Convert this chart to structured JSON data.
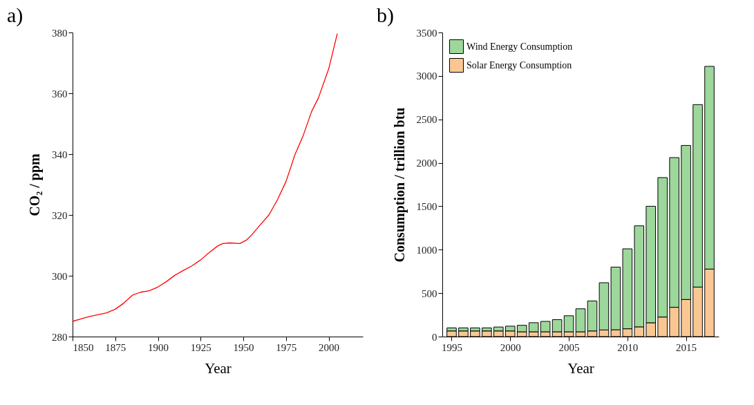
{
  "chart_data": [
    {
      "type": "line",
      "title": "a)",
      "xlabel": "Year",
      "ylabel": "CO₂ / ppm",
      "xlim": [
        1850,
        2020
      ],
      "xticks": [
        1850,
        1875,
        1900,
        1925,
        1950,
        1975,
        2000
      ],
      "ylim": [
        280,
        380
      ],
      "yticks": [
        280,
        300,
        320,
        340,
        360,
        380
      ],
      "grid": false,
      "legend": false,
      "x": [
        1850,
        1855,
        1860,
        1865,
        1870,
        1875,
        1880,
        1885,
        1890,
        1895,
        1900,
        1905,
        1910,
        1915,
        1920,
        1925,
        1930,
        1935,
        1938,
        1942,
        1948,
        1952,
        1955,
        1960,
        1965,
        1970,
        1975,
        1978,
        1980,
        1985,
        1990,
        1994,
        2000,
        2005
      ],
      "series": [
        {
          "color": "#ff0000",
          "values": [
            285,
            285.8,
            286.6,
            287.2,
            287.8,
            289,
            291,
            293.6,
            294.6,
            295.1,
            296.3,
            298.1,
            300.2,
            301.8,
            303.3,
            305.2,
            307.6,
            309.8,
            310.6,
            310.8,
            310.6,
            311.8,
            313.5,
            316.8,
            320,
            325,
            331,
            336,
            339.5,
            346,
            354,
            358.5,
            368,
            379.5
          ]
        }
      ]
    },
    {
      "type": "bar",
      "title": "b)",
      "xlabel": "Year",
      "ylabel": "Consumption / trillion btu",
      "stacked": true,
      "xlim": [
        1994.5,
        2017.5
      ],
      "xticks": [
        1995,
        2000,
        2005,
        2010,
        2015
      ],
      "ylim": [
        0,
        3500
      ],
      "yticks": [
        0,
        500,
        1000,
        1500,
        2000,
        2500,
        3000,
        3500
      ],
      "grid": false,
      "legend": "top left",
      "x": [
        1995,
        1996,
        1997,
        1998,
        1999,
        2000,
        2001,
        2002,
        2003,
        2004,
        2005,
        2006,
        2007,
        2008,
        2009,
        2010,
        2011,
        2012,
        2013,
        2014,
        2015,
        2016,
        2017
      ],
      "series": [
        {
          "name": "Solar Energy Consumption",
          "color": "#fac792",
          "values": [
            65,
            65,
            65,
            65,
            65,
            65,
            55,
            55,
            55,
            55,
            55,
            55,
            65,
            76,
            78,
            90,
            112,
            159,
            225,
            337,
            427,
            570,
            777
          ]
        },
        {
          "name": "Wind Energy Consumption",
          "color": "#9dd79b",
          "values": [
            35,
            35,
            35,
            35,
            45,
            55,
            75,
            105,
            120,
            140,
            185,
            265,
            345,
            544,
            722,
            920,
            1163,
            1341,
            1605,
            1723,
            1773,
            2100,
            2333
          ]
        }
      ]
    }
  ]
}
